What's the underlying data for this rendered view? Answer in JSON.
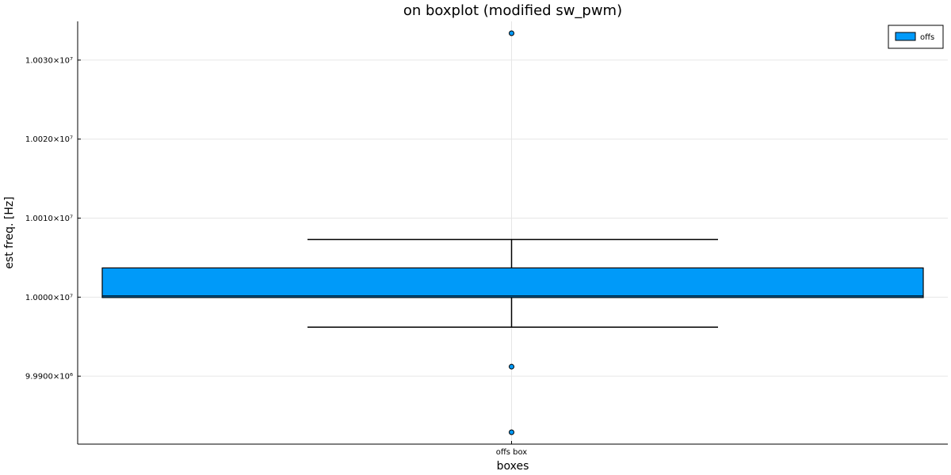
{
  "chart_data": {
    "type": "box",
    "title": "on boxplot (modified sw_pwm)",
    "xlabel": "boxes",
    "ylabel": "est freq. [Hz]",
    "categories": [
      "offs box"
    ],
    "series": [
      {
        "name": "offs",
        "color": "#009af9",
        "box": {
          "whisker_low": 9996200,
          "q1": 9999950,
          "median": 10000150,
          "q3": 10003700,
          "whisker_high": 10007300
        },
        "outliers": [
          10033400,
          9991200,
          9982900
        ]
      }
    ],
    "ylim": [
      9981400,
      10034900
    ],
    "yticks": [
      9990000,
      10000000,
      10010000,
      10020000,
      10030000
    ],
    "ytick_labels": [
      "9.9900×10⁶",
      "1.0000×10⁷",
      "1.0010×10⁷",
      "1.0020×10⁷",
      "1.0030×10⁷"
    ],
    "grid": true,
    "legend_position": "top-right"
  }
}
